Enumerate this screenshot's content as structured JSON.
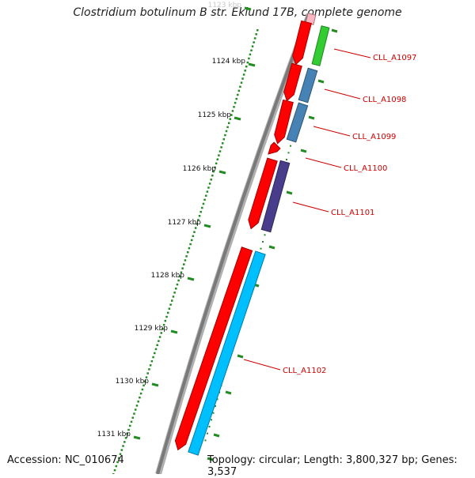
{
  "title": "Clostridium botulinum B str. Eklund 17B, complete genome",
  "footer": {
    "accession": "Accession: NC_010674",
    "topology": "Topology: circular; Length: 3,800,327 bp; Genes: 3,537"
  },
  "scale_labels": [
    "1123 kbp",
    "1124 kbp",
    "1125 kbp",
    "1126 kbp",
    "1127 kbp",
    "1128 kbp",
    "1129 kbp",
    "1130 kbp",
    "1131 kbp"
  ],
  "genes": [
    {
      "label": "CLL_A1097",
      "outer_color": "#ff0000",
      "inner_color": "#33cc33"
    },
    {
      "label": "CLL_A1098",
      "outer_color": "#ff0000",
      "inner_color": "#4682b4"
    },
    {
      "label": "CLL_A1099",
      "outer_color": "#ff0000",
      "inner_color": "#4682b4"
    },
    {
      "label": "CLL_A1100",
      "outer_color": "#ff0000",
      "inner_color": ""
    },
    {
      "label": "CLL_A1101",
      "outer_color": "#ff0000",
      "inner_color": "#483d8b"
    },
    {
      "label": "CLL_A1102",
      "outer_color": "#ff0000",
      "inner_color": "#00bfff"
    }
  ],
  "colors": {
    "backbone": "#808080",
    "gc_ticks": "#228b22",
    "label_text": "#cc0000",
    "pink_gene": "#ffb6c1"
  }
}
